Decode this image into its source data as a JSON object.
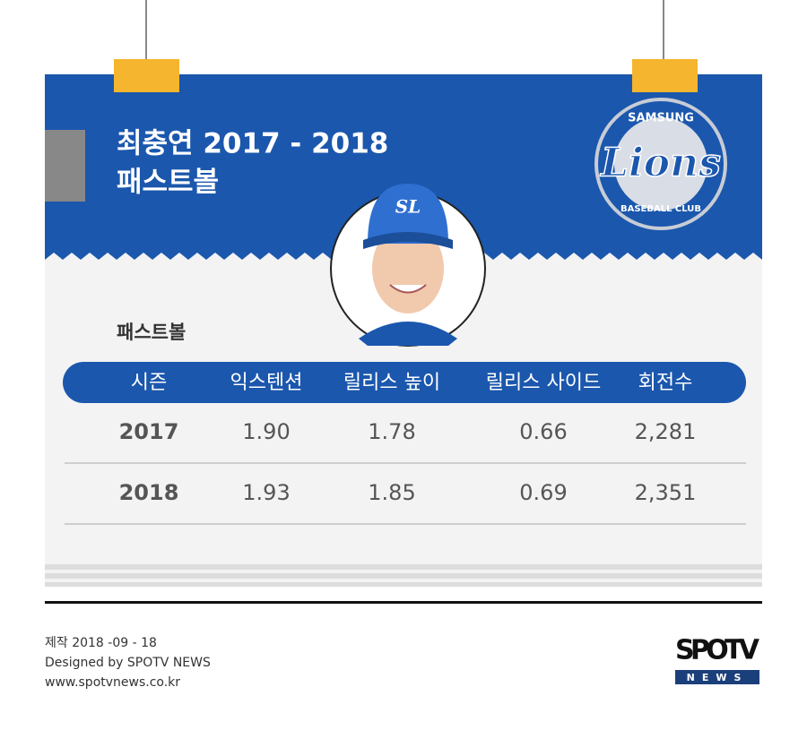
{
  "header": {
    "title_line1": "최충연 2017 - 2018",
    "title_line2": "패스트볼"
  },
  "team_logo": {
    "top": "SAMSUNG",
    "name": "Lions",
    "bottom": "BASEBALL CLUB"
  },
  "cap_logo": "SL",
  "section_label": "패스트볼",
  "table": {
    "columns": [
      "시즌",
      "익스텐션",
      "릴리스 높이",
      "릴리스 사이드",
      "회전수"
    ],
    "rows": [
      [
        "2017",
        "1.90",
        "1.78",
        "0.66",
        "2,281"
      ],
      [
        "2018",
        "1.93",
        "1.85",
        "0.69",
        "2,351"
      ]
    ]
  },
  "footer": {
    "date": "제작 2018 -09 - 18",
    "designer": "Designed by SPOTV NEWS",
    "url": "www.spotvnews.co.kr"
  },
  "brand_logo": {
    "main": "SPOTV",
    "sub": "NEWS"
  }
}
